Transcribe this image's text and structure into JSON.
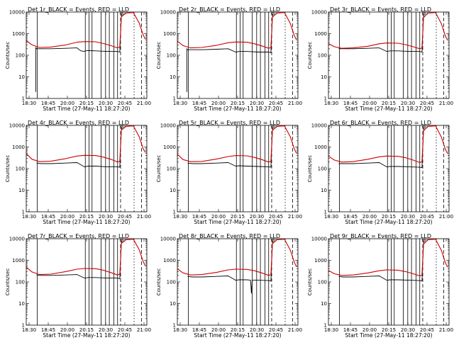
{
  "figure": {
    "ylabel": "Counts/sec",
    "xlabel": "Start Time (27-May-11 18:27:20)"
  },
  "chart_data": {
    "type": "line",
    "xlim": [
      "18:27:20",
      "21:08"
    ],
    "ylim": [
      1,
      10000
    ],
    "y_scale": "log",
    "y_ticks": [
      "1",
      "10",
      "100",
      "1000",
      "10000"
    ],
    "x_ticks": [
      "18:30",
      "18:45",
      "20:00",
      "20:15",
      "20:30",
      "20:45",
      "21:00"
    ],
    "legend_text_is_title": true,
    "vertical_markers": {
      "solid": [
        "18:42",
        "19:46",
        "19:51",
        "19:55",
        "20:07",
        "20:13",
        "20:18",
        "20:24",
        "20:29"
      ],
      "dashed": [
        "20:33",
        "21:01"
      ],
      "dotted": [
        "20:51"
      ]
    },
    "panels": [
      {
        "title": "Det 1r_BLACK = Events, RED = LLD",
        "series": [
          {
            "color": "#000000",
            "x": [
              "18:27:20",
              "18:35",
              "18:39",
              "18:40",
              "18:40",
              "18:41",
              "18:47",
              "19:00",
              "19:20",
              "19:35",
              "19:40",
              "19:45",
              "19:46",
              "19:50",
              "20:00",
              "20:15",
              "20:29",
              "20:32",
              "20:34",
              "20:35"
            ],
            "values": [
              null,
              null,
              null,
              2,
              230,
              200,
              200,
              200,
              210,
              220,
              160,
              150,
              160,
              165,
              160,
              150,
              150,
              140,
              6000,
              10000
            ]
          },
          {
            "color": "#cc0000",
            "x": [
              "18:27:20",
              "18:35",
              "18:45",
              "19:00",
              "19:20",
              "19:35",
              "19:45",
              "20:00",
              "20:10",
              "20:20",
              "20:29",
              "20:32",
              "20:34",
              "20:40",
              "20:50",
              "20:58",
              "21:03",
              "21:06"
            ],
            "values": [
              480,
              300,
              230,
              240,
              300,
              400,
              430,
              420,
              350,
              280,
              220,
              240,
              6000,
              9000,
              9500,
              3000,
              900,
              550
            ]
          }
        ]
      },
      {
        "title": "Det 2r_BLACK = Events, RED = LLD",
        "series": [
          {
            "color": "#000000",
            "x": [
              "18:27:20",
              "18:38",
              "18:40",
              "18:40",
              "18:41",
              "18:47",
              "19:00",
              "19:20",
              "19:35",
              "19:45",
              "19:50",
              "20:00",
              "20:15",
              "20:29",
              "20:32",
              "20:34",
              "20:35"
            ],
            "values": [
              null,
              null,
              2,
              200,
              180,
              180,
              180,
              190,
              200,
              140,
              150,
              150,
              140,
              140,
              130,
              6000,
              10000
            ]
          },
          {
            "color": "#cc0000",
            "x": [
              "18:27:20",
              "18:35",
              "18:45",
              "19:00",
              "19:20",
              "19:35",
              "19:45",
              "20:00",
              "20:10",
              "20:20",
              "20:29",
              "20:32",
              "20:34",
              "20:40",
              "20:50",
              "20:58",
              "21:03",
              "21:06"
            ],
            "values": [
              450,
              280,
              220,
              230,
              290,
              380,
              410,
              400,
              340,
              270,
              210,
              230,
              5800,
              9000,
              9500,
              2900,
              850,
              520
            ]
          }
        ]
      },
      {
        "title": "Det 3r_BLACK = Events, RED = LLD",
        "series": [
          {
            "color": "#000000",
            "x": [
              "18:27:20",
              "18:40",
              "18:41",
              "18:47",
              "19:00",
              "19:20",
              "19:35",
              "19:45",
              "19:50",
              "20:00",
              "20:15",
              "20:29",
              "20:32",
              "20:34",
              "20:35"
            ],
            "values": [
              null,
              null,
              200,
              200,
              200,
              210,
              220,
              150,
              160,
              160,
              150,
              150,
              140,
              6000,
              10000
            ]
          },
          {
            "color": "#cc0000",
            "x": [
              "18:27:20",
              "18:35",
              "18:45",
              "19:00",
              "19:20",
              "19:35",
              "19:45",
              "20:00",
              "20:10",
              "20:20",
              "20:29",
              "20:32",
              "20:34",
              "20:40",
              "20:50",
              "20:58",
              "21:03",
              "21:06"
            ],
            "values": [
              350,
              250,
              210,
              220,
              260,
              340,
              370,
              360,
              310,
              250,
              200,
              220,
              5500,
              9000,
              9500,
              2800,
              800,
              500
            ]
          }
        ]
      },
      {
        "title": "Det 4r_BLACK = Events, RED = LLD",
        "series": [
          {
            "color": "#000000",
            "x": [
              "18:27:20",
              "18:40",
              "18:41",
              "18:47",
              "19:00",
              "19:20",
              "19:35",
              "19:45",
              "19:50",
              "20:00",
              "20:15",
              "20:29",
              "20:32",
              "20:34",
              "20:35"
            ],
            "values": [
              null,
              null,
              180,
              170,
              170,
              180,
              190,
              120,
              130,
              130,
              120,
              120,
              115,
              6000,
              10000
            ]
          },
          {
            "color": "#cc0000",
            "x": [
              "18:27:20",
              "18:35",
              "18:45",
              "19:00",
              "19:20",
              "19:35",
              "19:45",
              "20:00",
              "20:10",
              "20:20",
              "20:29",
              "20:32",
              "20:34",
              "20:40",
              "20:50",
              "20:58",
              "21:03",
              "21:06"
            ],
            "values": [
              500,
              270,
              210,
              220,
              290,
              380,
              410,
              400,
              340,
              270,
              200,
              220,
              6000,
              9000,
              9500,
              2900,
              850,
              560
            ]
          }
        ]
      },
      {
        "title": "Det 5r_BLACK = Events, RED = LLD",
        "series": [
          {
            "color": "#000000",
            "x": [
              "18:27:20",
              "18:40",
              "18:41",
              "18:47",
              "19:00",
              "19:20",
              "19:35",
              "19:45",
              "19:50",
              "20:00",
              "20:15",
              "20:29",
              "20:32",
              "20:34",
              "20:35"
            ],
            "values": [
              null,
              null,
              180,
              170,
              170,
              180,
              190,
              130,
              135,
              130,
              125,
              120,
              115,
              6000,
              10000
            ]
          },
          {
            "color": "#cc0000",
            "x": [
              "18:27:20",
              "18:35",
              "18:45",
              "19:00",
              "19:20",
              "19:35",
              "19:45",
              "20:00",
              "20:10",
              "20:20",
              "20:29",
              "20:32",
              "20:34",
              "20:40",
              "20:50",
              "20:58",
              "21:03",
              "21:06"
            ],
            "values": [
              460,
              260,
              210,
              215,
              280,
              360,
              400,
              390,
              330,
              260,
              200,
              220,
              5800,
              9000,
              9500,
              2900,
              850,
              520
            ]
          }
        ]
      },
      {
        "title": "Det 6r_BLACK = Events, RED = LLD",
        "series": [
          {
            "color": "#000000",
            "x": [
              "18:27:20",
              "18:40",
              "18:41",
              "18:47",
              "19:00",
              "19:20",
              "19:35",
              "19:45",
              "19:50",
              "20:00",
              "20:15",
              "20:29",
              "20:32",
              "20:34",
              "20:35"
            ],
            "values": [
              null,
              null,
              170,
              170,
              170,
              180,
              190,
              120,
              125,
              125,
              120,
              115,
              110,
              6000,
              10000
            ]
          },
          {
            "color": "#cc0000",
            "x": [
              "18:27:20",
              "18:35",
              "18:45",
              "19:00",
              "19:20",
              "19:35",
              "19:45",
              "20:00",
              "20:10",
              "20:20",
              "20:29",
              "20:32",
              "20:34",
              "20:40",
              "20:50",
              "20:58",
              "21:03",
              "21:06"
            ],
            "values": [
              380,
              250,
              200,
              210,
              270,
              350,
              380,
              370,
              320,
              250,
              190,
              210,
              5600,
              9000,
              9500,
              2800,
              800,
              500
            ]
          }
        ]
      },
      {
        "title": "Det 7r_BLACK = Events, RED = LLD",
        "series": [
          {
            "color": "#000000",
            "x": [
              "18:27:20",
              "18:40",
              "18:41",
              "18:47",
              "19:00",
              "19:20",
              "19:35",
              "19:45",
              "19:50",
              "20:00",
              "20:15",
              "20:29",
              "20:32",
              "20:34",
              "20:35"
            ],
            "values": [
              null,
              null,
              210,
              200,
              200,
              210,
              220,
              150,
              160,
              160,
              150,
              150,
              140,
              6000,
              10000
            ]
          },
          {
            "color": "#cc0000",
            "x": [
              "18:27:20",
              "18:35",
              "18:45",
              "19:00",
              "19:20",
              "19:35",
              "19:45",
              "20:00",
              "20:10",
              "20:20",
              "20:29",
              "20:32",
              "20:34",
              "20:40",
              "20:50",
              "20:58",
              "21:03",
              "21:06"
            ],
            "values": [
              480,
              290,
              220,
              230,
              300,
              390,
              420,
              410,
              350,
              270,
              210,
              230,
              6000,
              9000,
              9500,
              3000,
              900,
              550
            ]
          }
        ]
      },
      {
        "title": "Det 8r_BLACK = Events, RED = LLD",
        "series": [
          {
            "color": "#000000",
            "x": [
              "18:27:20",
              "18:40",
              "18:41",
              "18:47",
              "19:00",
              "19:20",
              "19:35",
              "19:45",
              "19:50",
              "20:00",
              "20:05",
              "20:06",
              "20:07",
              "20:15",
              "20:29",
              "20:32",
              "20:34",
              "20:35"
            ],
            "values": [
              null,
              null,
              180,
              170,
              170,
              180,
              190,
              120,
              125,
              125,
              120,
              30,
              120,
              120,
              115,
              110,
              6000,
              10000
            ]
          },
          {
            "color": "#cc0000",
            "x": [
              "18:27:20",
              "18:35",
              "18:45",
              "19:00",
              "19:20",
              "19:35",
              "19:45",
              "20:00",
              "20:10",
              "20:20",
              "20:29",
              "20:32",
              "20:34",
              "20:40",
              "20:50",
              "20:58",
              "21:03",
              "21:06"
            ],
            "values": [
              400,
              260,
              210,
              220,
              280,
              360,
              390,
              380,
              330,
              260,
              200,
              220,
              5800,
              9000,
              9500,
              2900,
              850,
              500
            ]
          }
        ]
      },
      {
        "title": "Det 9r_BLACK = Events, RED = LLD",
        "series": [
          {
            "color": "#000000",
            "x": [
              "18:27:20",
              "18:40",
              "18:41",
              "18:47",
              "19:00",
              "19:20",
              "19:35",
              "19:45",
              "19:50",
              "20:00",
              "20:15",
              "20:29",
              "20:32",
              "20:34",
              "20:35"
            ],
            "values": [
              null,
              null,
              180,
              170,
              170,
              180,
              190,
              120,
              125,
              125,
              120,
              115,
              110,
              6000,
              10000
            ]
          },
          {
            "color": "#cc0000",
            "x": [
              "18:27:20",
              "18:35",
              "18:45",
              "19:00",
              "19:20",
              "19:35",
              "19:45",
              "20:00",
              "20:10",
              "20:20",
              "20:29",
              "20:32",
              "20:34",
              "20:40",
              "20:50",
              "20:58",
              "21:03",
              "21:06"
            ],
            "values": [
              340,
              240,
              200,
              210,
              260,
              330,
              360,
              350,
              300,
              240,
              190,
              210,
              5600,
              9000,
              9500,
              2800,
              800,
              480
            ]
          }
        ]
      }
    ]
  }
}
